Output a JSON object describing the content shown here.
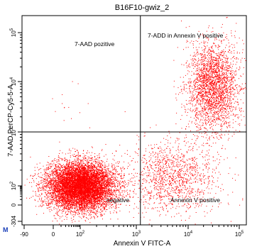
{
  "chart_data": {
    "type": "scatter",
    "title": "B16F10-gwiz_2",
    "xlabel": "Annexin V FITC-A",
    "ylabel": "7-AAD PerCP-Cy5-5-A",
    "x_scale": "log",
    "y_scale": "log",
    "xlim": [
      -90,
      300000
    ],
    "ylim": [
      -304,
      300000
    ],
    "x_ticks": [
      {
        "value": -90,
        "label": "-90"
      },
      {
        "value": 0,
        "label": "0"
      },
      {
        "value": 100,
        "label": "10^2"
      },
      {
        "value": 1000,
        "label": "10^3"
      },
      {
        "value": 10000,
        "label": "10^4"
      },
      {
        "value": 100000,
        "label": "10^5"
      }
    ],
    "y_ticks": [
      {
        "value": -304,
        "label": "-304"
      },
      {
        "value": 0,
        "label": "0"
      },
      {
        "value": 100,
        "label": "10^2"
      },
      {
        "value": 1000,
        "label": "10^3"
      },
      {
        "value": 10000,
        "label": "10^4"
      },
      {
        "value": 100000,
        "label": "10^5"
      }
    ],
    "gate_x": 1200,
    "gate_y": 1000,
    "quadrant_labels": {
      "upper_left": "7-AAD pozitive",
      "upper_right": "7-ADD in Annexin V positive",
      "lower_left": "negative",
      "lower_right": "Annexin V positive"
    },
    "corner_marker": "M",
    "point_color": "#ff0000",
    "populations": [
      {
        "name": "negative",
        "center_x": 100,
        "center_y": 100,
        "count": 9000
      },
      {
        "name": "Annexin V positive",
        "center_x": 5000,
        "center_y": 150,
        "count": 1300
      },
      {
        "name": "7-ADD in Annexin V positive",
        "center_x": 30000,
        "center_y": 8000,
        "count": 2600
      },
      {
        "name": "7-AAD pozitive",
        "center_x": 40,
        "center_y": 3000,
        "count": 15
      }
    ],
    "grid": false,
    "legend": "none"
  }
}
